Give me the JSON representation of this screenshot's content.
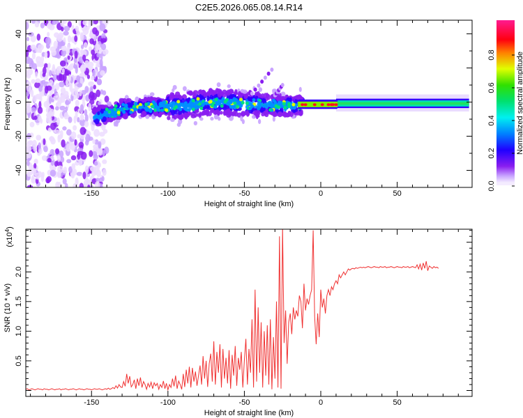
{
  "title": "C2E5.2026.065.08.14.R14",
  "chart_data": [
    {
      "type": "heatmap",
      "title": "C2E5.2026.065.08.14.R14",
      "xlabel": "Height of straight line (km)",
      "ylabel": "Frequency (Hz)",
      "xlim": [
        -193,
        99
      ],
      "ylim": [
        -50,
        48
      ],
      "xticks": [
        -150,
        -100,
        -50,
        0,
        50
      ],
      "yticks": [
        -40,
        -20,
        0,
        20,
        40
      ],
      "colorbar": {
        "label": "Normalized spectral amplitude",
        "range": [
          0,
          1
        ],
        "ticks": [
          0.0,
          0.2,
          0.4,
          0.6,
          0.8
        ],
        "tick_labels": [
          "0.0",
          "0.2",
          "0.4",
          "0.6",
          "0.8"
        ]
      },
      "colormap": [
        "#ffffff",
        "#e6d4ff",
        "#8a2be2",
        "#6a00ff",
        "#0000ff",
        "#00a0ff",
        "#00ffff",
        "#00ff80",
        "#00e000",
        "#c0ff00",
        "#ffff00",
        "#ff8000",
        "#ff0000",
        "#ff1493"
      ],
      "ridge": {
        "heights_km": [
          -148,
          -130,
          -110,
          -90,
          -70,
          -50,
          -30,
          -15,
          0,
          10,
          50,
          97
        ],
        "center_hz": [
          -9,
          -4,
          -3,
          -2,
          0,
          -1,
          -2,
          -2,
          -1.5,
          -1.5,
          -0.8,
          -0.8
        ]
      },
      "noise_region_km": [
        -193,
        -140
      ],
      "streaks": [
        {
          "from": [
            -45,
            5
          ],
          "to": [
            -32,
            19
          ]
        },
        {
          "from": [
            -30,
            4
          ],
          "to": [
            -25,
            10
          ]
        }
      ]
    },
    {
      "type": "line",
      "xlabel": "Height of straight line (km)",
      "ylabel": "SNR (10 * v/v)",
      "yscale_label": "(x10",
      "yscale_exp": "4",
      "xlim": [
        -193,
        99
      ],
      "ylim": [
        -0.1,
        2.72
      ],
      "xticks": [
        -150,
        -100,
        -50,
        0,
        50
      ],
      "yticks": [
        0.5,
        1.0,
        1.5,
        2.0
      ],
      "ytick_labels": [
        "0.5",
        "1.0",
        "1.5",
        "2.0"
      ],
      "color": "#f03030",
      "x_start": -193,
      "x_step": 1,
      "values": [
        0.02,
        0.03,
        0.01,
        0.02,
        0.03,
        0.02,
        0.01,
        0.02,
        0.03,
        0.02,
        0.02,
        0.01,
        0.03,
        0.02,
        0.02,
        0.01,
        0.02,
        0.03,
        0.02,
        0.01,
        0.02,
        0.02,
        0.03,
        0.01,
        0.02,
        0.02,
        0.03,
        0.02,
        0.01,
        0.02,
        0.02,
        0.03,
        0.02,
        0.01,
        0.02,
        0.03,
        0.02,
        0.02,
        0.01,
        0.02,
        0.03,
        0.02,
        0.02,
        0.01,
        0.02,
        0.03,
        0.02,
        0.02,
        0.03,
        0.02,
        0.01,
        0.02,
        0.03,
        0.02,
        0.04,
        0.02,
        0.03,
        0.05,
        0.03,
        0.08,
        0.04,
        0.1,
        0.06,
        0.05,
        0.15,
        0.07,
        0.28,
        0.12,
        0.24,
        0.06,
        0.1,
        0.18,
        0.03,
        0.2,
        0.08,
        0.22,
        0.05,
        0.15,
        0.1,
        0.02,
        0.12,
        0.06,
        0.14,
        0.03,
        0.13,
        0.08,
        0.12,
        0.02,
        0.1,
        0.05,
        0.16,
        0.03,
        0.12,
        0.01,
        0.1,
        0.05,
        0.2,
        0.07,
        0.25,
        0.03,
        0.16,
        0.1,
        0.02,
        0.28,
        0.06,
        0.35,
        0.12,
        0.4,
        0.05,
        0.38,
        0.15,
        0.32,
        0.08,
        0.25,
        0.42,
        0.1,
        0.58,
        0.2,
        0.5,
        0.06,
        0.45,
        0.62,
        0.15,
        0.83,
        0.1,
        0.65,
        0.3,
        0.78,
        0.05,
        0.7,
        0.2,
        0.55,
        0.12,
        0.68,
        0.03,
        0.6,
        0.25,
        0.75,
        0.08,
        0.55,
        0.35,
        0.65,
        0.05,
        0.5,
        0.87,
        0.1,
        0.7,
        0.3,
        1.2,
        0.05,
        1.7,
        0.15,
        1.4,
        0.3,
        1.15,
        0.05,
        1.0,
        0.25,
        1.1,
        0.1,
        1.2,
        0.02,
        0.9,
        0.2,
        1.5,
        0.05,
        2.6,
        0.03,
        2.75,
        0.8,
        1.35,
        0.45,
        1.15,
        1.3,
        0.95,
        1.4,
        1.2,
        1.35,
        1.25,
        1.6,
        1.5,
        1.05,
        1.8,
        1.35,
        1.55,
        1.45,
        1.6,
        1.7,
        2.7,
        1.25,
        0.78,
        1.3,
        0.9,
        1.7,
        1.4,
        1.55,
        1.3,
        1.6,
        1.7,
        1.6,
        1.75,
        1.7,
        1.8,
        1.85,
        1.8,
        1.95,
        1.9,
        1.95,
        2.0,
        1.95,
        2.0,
        2.05,
        2.03,
        2.05,
        2.06,
        2.05,
        2.07,
        2.06,
        2.07,
        2.08,
        2.07,
        2.08,
        2.07,
        2.08,
        2.09,
        2.08,
        2.07,
        2.08,
        2.09,
        2.08,
        2.08,
        2.07,
        2.09,
        2.08,
        2.08,
        2.09,
        2.07,
        2.08,
        2.08,
        2.09,
        2.08,
        2.07,
        2.08,
        2.09,
        2.08,
        2.08,
        2.07,
        2.09,
        2.08,
        2.08,
        2.09,
        2.07,
        2.08,
        2.09,
        2.08,
        2.07,
        2.12,
        2.05,
        2.13,
        2.03,
        2.15,
        2.06,
        2.18,
        2.02,
        2.1,
        2.08,
        2.06,
        2.09,
        2.07,
        2.08,
        2.06
      ]
    }
  ]
}
